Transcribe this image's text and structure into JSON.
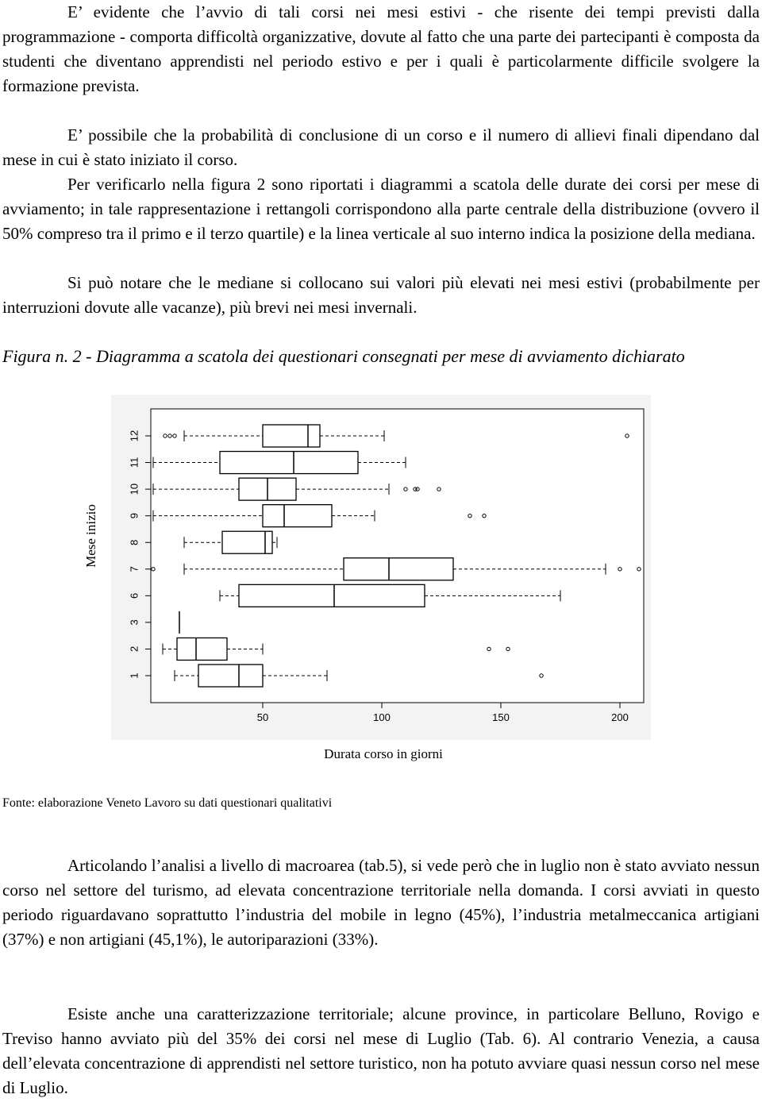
{
  "paragraphs": [
    "E’ evidente che l’avvio di tali corsi nei mesi estivi - che risente dei tempi previsti dalla programmazione - comporta difficoltà organizzative, dovute al fatto che una parte dei partecipanti è composta da  studenti che diventano apprendisti nel periodo estivo e per i quali è particolarmente difficile svolgere la formazione prevista.",
    "E’ possibile che la probabilità di conclusione di un corso e il numero di allievi finali dipendano dal mese in cui è stato iniziato il corso.",
    "Per verificarlo nella figura 2 sono riportati i diagrammi a scatola delle durate dei corsi per mese di avviamento; in tale rappresentazione i rettangoli corrispondono alla parte centrale della distribuzione (ovvero il 50% compreso tra il primo e il terzo quartile) e la linea verticale al suo interno indica la posizione della mediana.",
    "Si può notare che le mediane si collocano sui valori più elevati nei mesi estivi (probabilmente per interruzioni dovute alle vacanze), più brevi nei mesi invernali."
  ],
  "figure_caption": "Figura n. 2 - Diagramma a scatola dei questionari consegnati per mese di avviamento dichiarato",
  "chart_data": {
    "type": "boxplot",
    "orientation": "horizontal",
    "y_label": "Mese inizio",
    "x_label": "Durata corso in giorni",
    "categories": [
      "1",
      "2",
      "3",
      "6",
      "7",
      "8",
      "9",
      "10",
      "11",
      "12"
    ],
    "boxes": [
      {
        "whislo": 13,
        "q1": 23,
        "med": 40,
        "q3": 50,
        "whishi": 77,
        "fliers": [
          167
        ]
      },
      {
        "whislo": 8,
        "q1": 14,
        "med": 22,
        "q3": 35,
        "whishi": 50,
        "fliers": [
          145,
          153
        ]
      },
      {
        "whislo": 15,
        "q1": 15,
        "med": 15,
        "q3": 15,
        "whishi": 15,
        "fliers": []
      },
      {
        "whislo": 32,
        "q1": 40,
        "med": 80,
        "q3": 118,
        "whishi": 175,
        "fliers": []
      },
      {
        "whislo": 17,
        "q1": 84,
        "med": 103,
        "q3": 130,
        "whishi": 194,
        "fliers": [
          4,
          200,
          208
        ]
      },
      {
        "whislo": 17,
        "q1": 33,
        "med": 51,
        "q3": 54,
        "whishi": 56,
        "fliers": []
      },
      {
        "whislo": 4,
        "q1": 50,
        "med": 59,
        "q3": 79,
        "whishi": 97,
        "fliers": [
          137,
          143
        ]
      },
      {
        "whislo": 4,
        "q1": 40,
        "med": 52,
        "q3": 64,
        "whishi": 103,
        "fliers": [
          110,
          114,
          115,
          124
        ]
      },
      {
        "whislo": 4,
        "q1": 32,
        "med": 63,
        "q3": 90,
        "whishi": 110,
        "fliers": []
      },
      {
        "whislo": 17,
        "q1": 50,
        "med": 69,
        "q3": 74,
        "whishi": 101,
        "fliers": [
          9,
          11,
          13,
          203
        ]
      }
    ],
    "color": "#000000",
    "xlim": [
      3,
      210
    ],
    "xticks": [
      50,
      100,
      150,
      200
    ]
  },
  "source": "Fonte: elaborazione Veneto Lavoro su dati questionari qualitativi",
  "paragraphs_after": [
    "Articolando l’analisi a livello di macroarea (tab.5), si vede però che in luglio non è stato avviato nessun corso nel settore del turismo, ad elevata concentrazione territoriale nella domanda. I corsi avviati in questo periodo riguardavano soprattutto l’industria del mobile in legno (45%), l’industria metalmeccanica artigiani (37%) e non artigiani (45,1%), le autoriparazioni (33%).",
    "Esiste anche una caratterizzazione territoriale; alcune province, in particolare Belluno, Rovigo e Treviso hanno avviato più del 35% dei corsi nel mese di Luglio (Tab. 6). Al contrario Venezia, a causa dell’elevata concentrazione di apprendisti nel settore turistico, non ha potuto avviare quasi nessun corso nel mese di Luglio."
  ]
}
